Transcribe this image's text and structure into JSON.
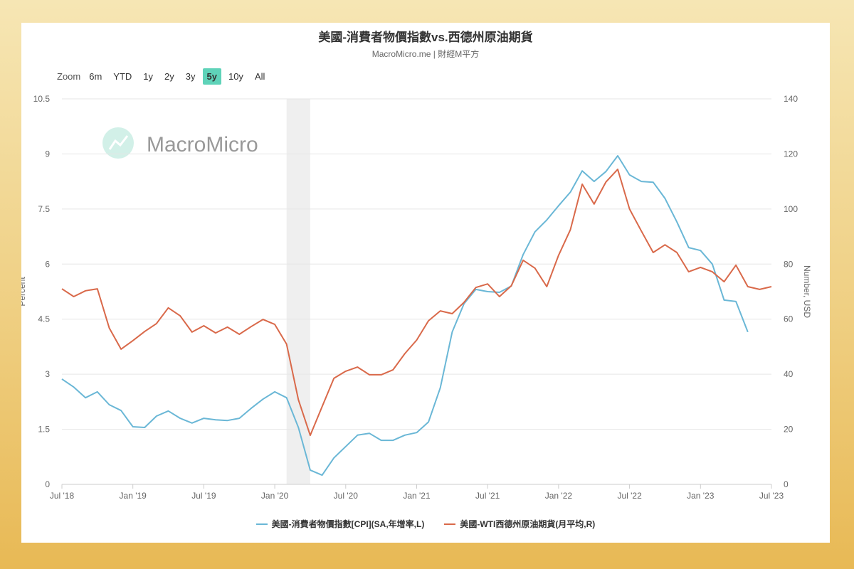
{
  "header": {
    "title": "美國-消費者物價指數vs.西德州原油期貨",
    "subtitle": "MacroMicro.me | 財經M平方"
  },
  "zoom": {
    "label": "Zoom",
    "buttons": [
      "6m",
      "YTD",
      "1y",
      "2y",
      "3y",
      "5y",
      "10y",
      "All"
    ],
    "active": "5y"
  },
  "watermark": "MacroMicro",
  "chart_data": {
    "type": "line",
    "title": "美國-消費者物價指數vs.西德州原油期貨",
    "ylabel_left": "Percent",
    "ylabel_right": "Number, USD",
    "ylim_left": [
      0,
      10.5
    ],
    "ylim_right": [
      0,
      140
    ],
    "yticks_left": [
      "0",
      "1.5",
      "3",
      "4.5",
      "6",
      "7.5",
      "9",
      "10.5"
    ],
    "yticks_right": [
      "0",
      "20",
      "40",
      "60",
      "80",
      "100",
      "120",
      "140"
    ],
    "xticks": [
      "Jul '18",
      "Jan '19",
      "Jul '19",
      "Jan '20",
      "Jul '20",
      "Jan '21",
      "Jul '21",
      "Jan '22",
      "Jul '22",
      "Jan '23",
      "Jul '23"
    ],
    "xrange": [
      "2018-07",
      "2023-07"
    ],
    "shaded_band": [
      "2020-02",
      "2020-04"
    ],
    "grid": true,
    "legend_placement": "bottom",
    "series": [
      {
        "name": "美國-消費者物價指數[CPI](SA,年增率,L)",
        "axis": "left",
        "color": "#6ab7d6",
        "start": "2018-07",
        "values": [
          2.87,
          2.65,
          2.36,
          2.52,
          2.17,
          2.01,
          1.57,
          1.55,
          1.86,
          2.0,
          1.8,
          1.67,
          1.8,
          1.76,
          1.74,
          1.8,
          2.07,
          2.32,
          2.52,
          2.36,
          1.55,
          0.39,
          0.25,
          0.72,
          1.03,
          1.34,
          1.39,
          1.2,
          1.2,
          1.34,
          1.41,
          1.7,
          2.63,
          4.15,
          4.92,
          5.31,
          5.25,
          5.23,
          5.4,
          6.26,
          6.88,
          7.2,
          7.59,
          7.96,
          8.54,
          8.25,
          8.52,
          8.95,
          8.43,
          8.25,
          8.23,
          7.79,
          7.15,
          6.45,
          6.37,
          6.0,
          5.02,
          4.98,
          4.15
        ]
      },
      {
        "name": "美國-WTI西德州原油期貨(月平均,R)",
        "axis": "right",
        "color": "#d9694a",
        "start": "2018-07",
        "values": [
          71.0,
          68.2,
          70.3,
          71.0,
          56.8,
          49.1,
          52.2,
          55.5,
          58.4,
          64.1,
          61.2,
          55.3,
          57.6,
          55.0,
          57.1,
          54.5,
          57.3,
          59.9,
          58.1,
          50.9,
          30.7,
          17.8,
          28.2,
          38.5,
          41.1,
          42.6,
          39.8,
          39.8,
          41.6,
          47.5,
          52.4,
          59.4,
          63.0,
          62.0,
          66.1,
          71.5,
          72.8,
          68.2,
          72.1,
          81.4,
          78.5,
          71.8,
          83.2,
          92.5,
          109.0,
          101.8,
          109.8,
          114.4,
          100.0,
          92.0,
          84.2,
          87.0,
          84.2,
          77.2,
          78.8,
          77.2,
          73.6,
          79.6,
          71.8,
          70.8,
          71.8
        ]
      }
    ]
  }
}
